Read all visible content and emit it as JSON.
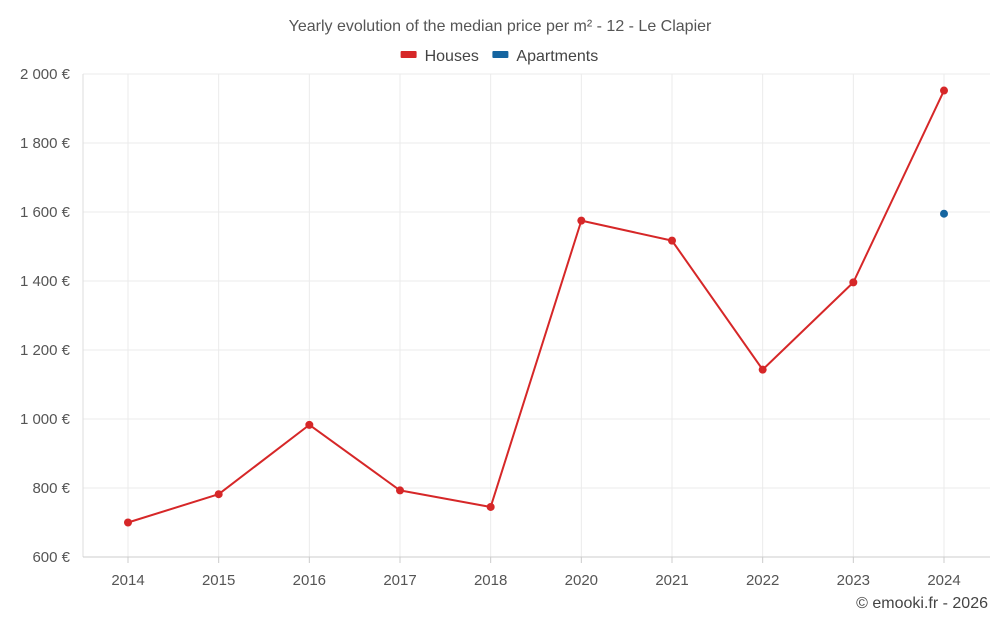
{
  "chart_data": {
    "type": "line",
    "title": "Yearly evolution of the median price per m² - 12 - Le Clapier",
    "categories": [
      "2014",
      "2015",
      "2016",
      "2017",
      "2018",
      "2020",
      "2021",
      "2022",
      "2023",
      "2024"
    ],
    "ylim": [
      600,
      2000
    ],
    "yticks": [
      600,
      800,
      1000,
      1200,
      1400,
      1600,
      1800,
      2000
    ],
    "ytick_labels": [
      "600 €",
      "800 €",
      "1 000 €",
      "1 200 €",
      "1 400 €",
      "1 600 €",
      "1 800 €",
      "2 000 €"
    ],
    "xlabel": "",
    "ylabel": "",
    "grid": true,
    "legend_position": "top-center",
    "series": [
      {
        "name": "Houses",
        "color": "#d62728",
        "values": [
          700,
          782,
          983,
          793,
          745,
          1575,
          1517,
          1143,
          1396,
          1952
        ]
      },
      {
        "name": "Apartments",
        "color": "#1565a0",
        "values": [
          null,
          null,
          null,
          null,
          null,
          null,
          null,
          null,
          null,
          1595
        ]
      }
    ]
  },
  "footer": {
    "credit": "© emooki.fr - 2026"
  }
}
